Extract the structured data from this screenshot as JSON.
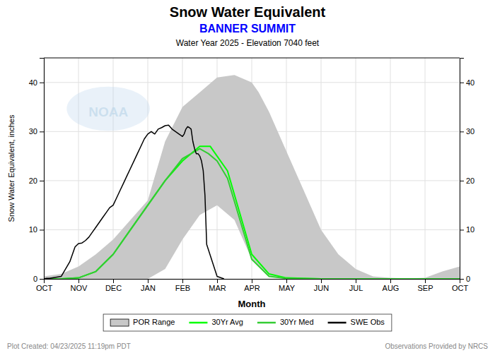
{
  "chart_data": {
    "type": "line",
    "title": "Snow Water Equivalent",
    "subtitle": "BANNER SUMMIT",
    "subtitle_color": "#0000FF",
    "subtitle2": "Water Year 2025 -  Elevation 7040 feet",
    "xlabel": "Month",
    "ylabel": "Snow Water Equivalent, inches",
    "watermark": "NOAA",
    "footer_left": "Plot Created: 04/23/2025 11:19pm PDT",
    "footer_right": "Observations Provided by NRCS",
    "grid": true,
    "legend": "bottom",
    "xlim": [
      0,
      12
    ],
    "xticks": [
      {
        "value": 0,
        "label": "OCT"
      },
      {
        "value": 1,
        "label": "NOV"
      },
      {
        "value": 2,
        "label": "DEC"
      },
      {
        "value": 3,
        "label": "JAN"
      },
      {
        "value": 4,
        "label": "FEB"
      },
      {
        "value": 5,
        "label": "MAR"
      },
      {
        "value": 6,
        "label": "APR"
      },
      {
        "value": 7,
        "label": "MAY"
      },
      {
        "value": 8,
        "label": "JUN"
      },
      {
        "value": 9,
        "label": "JUL"
      },
      {
        "value": 10,
        "label": "AUG"
      },
      {
        "value": 11,
        "label": "SEP"
      },
      {
        "value": 12,
        "label": "OCT"
      }
    ],
    "ylim": [
      0,
      45
    ],
    "yticks": [
      0,
      10,
      20,
      30,
      40
    ],
    "y2lim": [
      0,
      45
    ],
    "y2ticks": [
      0,
      10,
      20,
      30,
      40
    ],
    "series": [
      {
        "name": "POR Range",
        "type": "area",
        "color": "#c8c8c8",
        "x": [
          0,
          0.5,
          1.0,
          1.5,
          2.0,
          2.5,
          3.0,
          3.5,
          4.0,
          4.5,
          5.0,
          5.5,
          6.0,
          6.2,
          6.5,
          7.0,
          7.5,
          8.0,
          8.5,
          9.0,
          9.5,
          10.0,
          10.5,
          11.0,
          11.5,
          12.0
        ],
        "values": [
          0.5,
          1.0,
          2.5,
          5.0,
          8.0,
          12.0,
          16.0,
          28.0,
          35.0,
          38.0,
          41.0,
          41.5,
          40.0,
          38.0,
          34.0,
          26.0,
          18.0,
          10.0,
          5.0,
          2.0,
          0.5,
          0.2,
          0.1,
          0.2,
          1.5,
          2.5
        ],
        "lower_x": [
          0,
          0.5,
          1.0,
          1.5,
          2.0,
          2.5,
          3.0,
          3.5,
          4.0,
          4.5,
          5.0,
          5.5,
          6.0,
          6.5,
          7.0,
          7.5,
          8.0,
          9.0,
          10.0,
          11.0,
          12.0
        ],
        "lower": [
          0.0,
          0.0,
          0.0,
          0.0,
          0.0,
          0.0,
          0.0,
          2.0,
          8.0,
          13.0,
          15.0,
          12.0,
          4.0,
          0.5,
          0.0,
          0.0,
          0.0,
          0.0,
          0.0,
          0.0,
          0.0
        ]
      },
      {
        "name": "30Yr Avg",
        "type": "line",
        "color": "#00ff00",
        "x": [
          0,
          0.5,
          1.0,
          1.5,
          2.0,
          2.5,
          3.0,
          3.5,
          4.0,
          4.5,
          4.8,
          5.0,
          5.3,
          6.0,
          6.5,
          7.0,
          8.0,
          9.0,
          10.0,
          11.0,
          12.0
        ],
        "values": [
          0.0,
          0.0,
          0.2,
          1.5,
          5.0,
          10.0,
          15.0,
          20.0,
          24.0,
          27.0,
          27.0,
          25.0,
          22.0,
          5.0,
          1.0,
          0.2,
          0.0,
          0.0,
          0.0,
          0.0,
          0.0
        ]
      },
      {
        "name": "30Yr Med",
        "type": "line",
        "color": "#33cc33",
        "x": [
          0,
          0.5,
          1.0,
          1.5,
          2.0,
          2.5,
          3.0,
          3.5,
          4.0,
          4.5,
          4.75,
          5.0,
          5.3,
          6.0,
          6.5,
          7.0,
          8.0,
          9.0,
          10.0,
          11.0,
          12.0
        ],
        "values": [
          0.0,
          0.0,
          0.2,
          1.5,
          5.0,
          10.0,
          15.0,
          20.0,
          24.5,
          26.5,
          25.5,
          24.0,
          20.5,
          4.0,
          0.5,
          0.1,
          0.0,
          0.0,
          0.0,
          0.0,
          0.0
        ]
      },
      {
        "name": "SWE Obs",
        "type": "line",
        "color": "#000000",
        "x": [
          0,
          0.08,
          0.16,
          0.5,
          0.75,
          0.9,
          1.0,
          1.1,
          1.2,
          1.3,
          1.4,
          1.5,
          1.6,
          1.7,
          1.8,
          1.9,
          2.0,
          2.1,
          2.2,
          2.3,
          2.4,
          2.5,
          2.6,
          2.7,
          2.8,
          2.9,
          3.0,
          3.1,
          3.2,
          3.3,
          3.4,
          3.5,
          3.6,
          3.7,
          3.8,
          3.9,
          4.0,
          4.05,
          4.1,
          4.15,
          4.2,
          4.25,
          4.3,
          4.35,
          4.4,
          4.45,
          4.5,
          4.55,
          4.6,
          4.65,
          4.7,
          5.0,
          5.2
        ],
        "values": [
          0.0,
          0.1,
          0.1,
          0.5,
          3.5,
          6.5,
          7.2,
          7.3,
          7.8,
          8.5,
          9.5,
          10.5,
          11.5,
          12.5,
          13.5,
          14.5,
          15.0,
          16.5,
          18.0,
          19.5,
          21.0,
          22.5,
          24.0,
          25.5,
          27.0,
          28.5,
          29.5,
          30.0,
          29.5,
          30.5,
          30.8,
          31.2,
          31.3,
          30.5,
          30.0,
          29.5,
          29.0,
          29.5,
          30.5,
          31.0,
          30.8,
          30.5,
          28.0,
          26.5,
          25.5,
          25.5,
          25.0,
          24.0,
          22.0,
          17.0,
          7.0,
          0.5,
          0.0
        ]
      }
    ]
  }
}
